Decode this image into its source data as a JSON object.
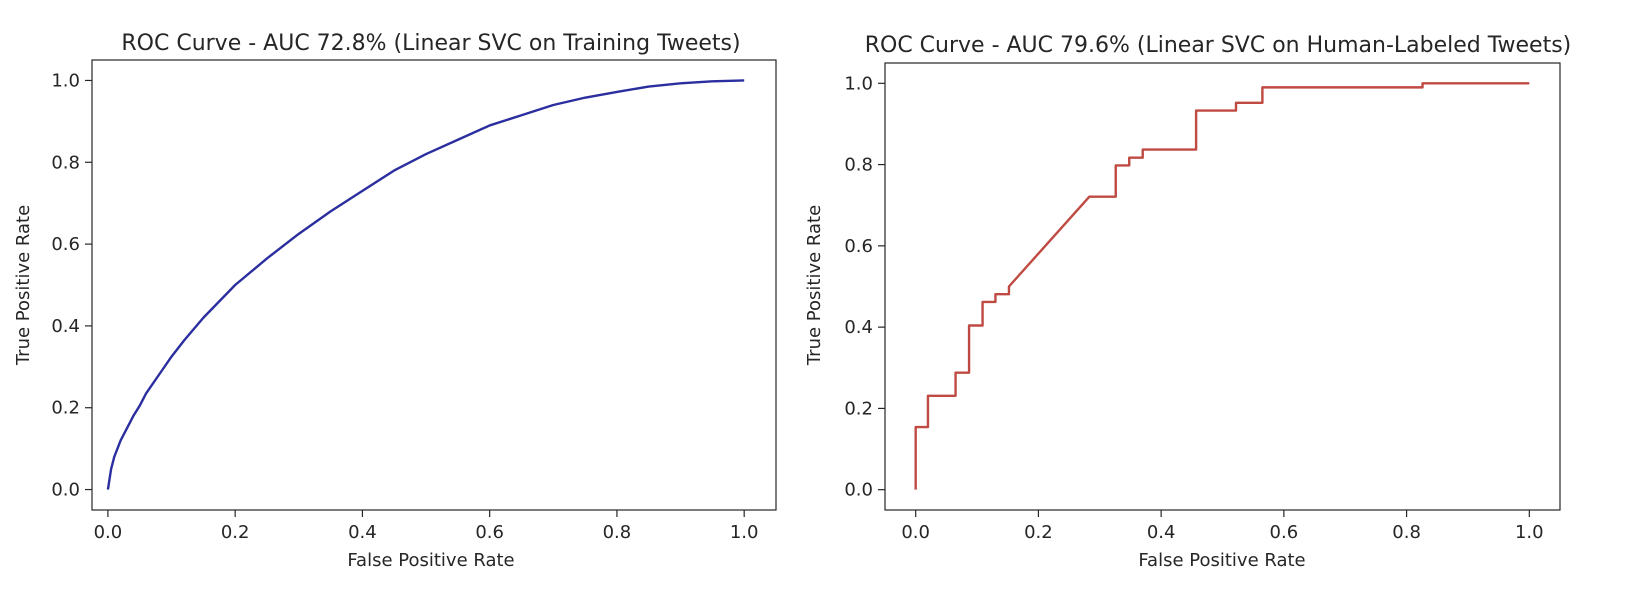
{
  "chart_data": [
    {
      "type": "line",
      "title": "ROC Curve - AUC 72.8% (Linear SVC on Training Tweets)",
      "xlabel": "False Positive Rate",
      "ylabel": "True Positive Rate",
      "xlim": [
        -0.025,
        1.05
      ],
      "ylim": [
        -0.05,
        1.05
      ],
      "xticks": [
        "0.0",
        "0.2",
        "0.4",
        "0.6",
        "0.8",
        "1.0"
      ],
      "yticks": [
        "0.0",
        "0.2",
        "0.4",
        "0.6",
        "0.8",
        "1.0"
      ],
      "grid": false,
      "color": "#2b2e9e",
      "series": [
        {
          "x": [
            0.0,
            0.005,
            0.01,
            0.02,
            0.03,
            0.04,
            0.05,
            0.06,
            0.08,
            0.1,
            0.12,
            0.15,
            0.2,
            0.25,
            0.3,
            0.35,
            0.4,
            0.45,
            0.5,
            0.55,
            0.6,
            0.65,
            0.7,
            0.75,
            0.8,
            0.85,
            0.9,
            0.95,
            1.0
          ],
          "y": [
            0.0,
            0.05,
            0.08,
            0.12,
            0.15,
            0.18,
            0.205,
            0.235,
            0.28,
            0.325,
            0.365,
            0.42,
            0.5,
            0.565,
            0.625,
            0.68,
            0.73,
            0.78,
            0.82,
            0.855,
            0.89,
            0.915,
            0.94,
            0.958,
            0.972,
            0.985,
            0.993,
            0.998,
            1.0
          ]
        }
      ]
    },
    {
      "type": "line",
      "title": "ROC Curve - AUC 79.6% (Linear SVC on Human-Labeled Tweets)",
      "xlabel": "False Positive Rate",
      "ylabel": "True Positive Rate",
      "xlim": [
        -0.05,
        1.05
      ],
      "ylim": [
        -0.05,
        1.05
      ],
      "xticks": [
        "0.0",
        "0.2",
        "0.4",
        "0.6",
        "0.8",
        "1.0"
      ],
      "yticks": [
        "0.0",
        "0.2",
        "0.4",
        "0.6",
        "0.8",
        "1.0"
      ],
      "grid": false,
      "color": "#bf4a42",
      "series": [
        {
          "x": [
            0.0,
            0.0,
            0.02,
            0.02,
            0.065,
            0.065,
            0.087,
            0.087,
            0.109,
            0.109,
            0.13,
            0.13,
            0.152,
            0.152,
            0.283,
            0.326,
            0.326,
            0.348,
            0.348,
            0.37,
            0.37,
            0.457,
            0.457,
            0.522,
            0.522,
            0.565,
            0.565,
            0.826,
            0.826,
            1.0
          ],
          "y": [
            0.0,
            0.154,
            0.154,
            0.231,
            0.231,
            0.288,
            0.288,
            0.404,
            0.404,
            0.462,
            0.462,
            0.481,
            0.481,
            0.5,
            0.721,
            0.721,
            0.798,
            0.798,
            0.817,
            0.817,
            0.837,
            0.837,
            0.933,
            0.933,
            0.952,
            0.952,
            0.99,
            0.99,
            1.0,
            1.0
          ]
        }
      ]
    }
  ]
}
